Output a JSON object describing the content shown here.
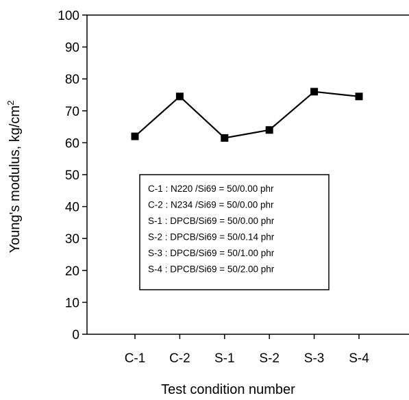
{
  "chart_data": {
    "type": "line",
    "title": "",
    "xlabel": "Test condition number",
    "ylabel": "Young's modulus, kg/cm",
    "ylabel_superscript": "2",
    "categories": [
      "C-1",
      "C-2",
      "S-1",
      "S-2",
      "S-3",
      "S-4"
    ],
    "series": [
      {
        "values": [
          62,
          74.5,
          61.5,
          64,
          76,
          74.5
        ],
        "marker": "square",
        "color": "#000000"
      }
    ],
    "ylim": [
      0,
      100
    ],
    "yticks": [
      0,
      10,
      20,
      30,
      40,
      50,
      60,
      70,
      80,
      90,
      100
    ],
    "grid": false,
    "legend_placement": "center",
    "legend": [
      "C-1 : N220 /Si69 = 50/0.00 phr",
      "C-2 : N234 /Si69 = 50/0.00 phr",
      "S-1 : DPCB/Si69 = 50/0.00 phr",
      "S-2 : DPCB/Si69 = 50/0.14 phr",
      "S-3 : DPCB/Si69 = 50/1.00 phr",
      "S-4 : DPCB/Si69 = 50/2.00 phr"
    ]
  }
}
